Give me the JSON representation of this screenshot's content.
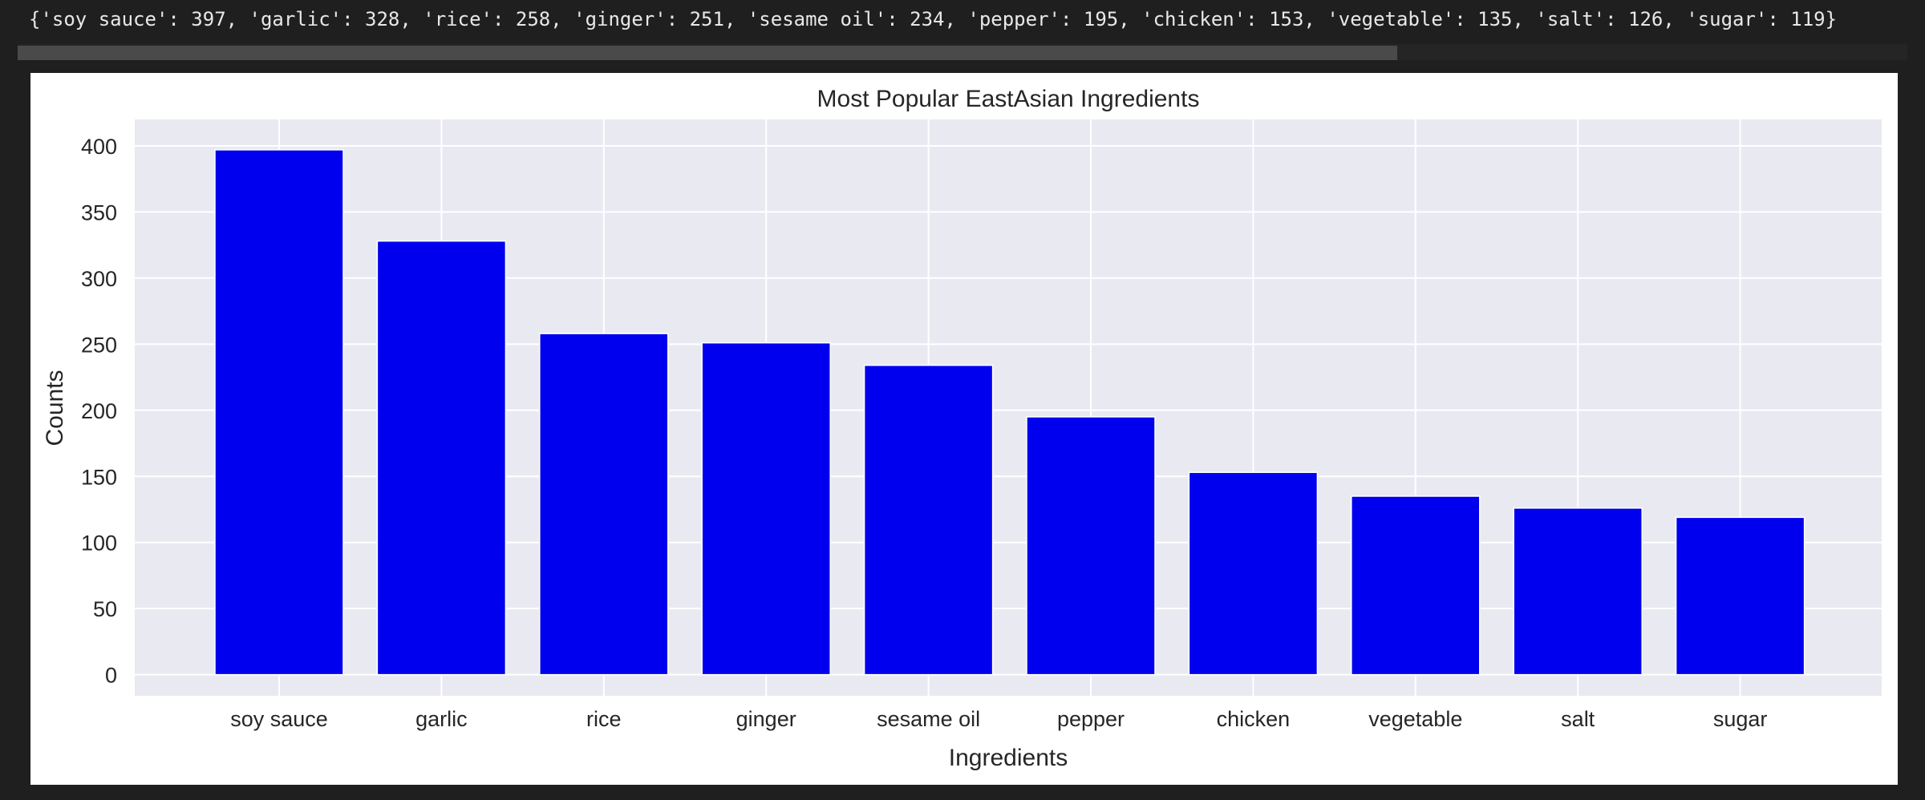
{
  "output": {
    "text": "{'soy sauce': 397, 'garlic': 328, 'rice': 258, 'ginger': 251, 'sesame oil': 234, 'pepper': 195, 'chicken': 153, 'vegetable': 135, 'salt': 126, 'sugar': 119}"
  },
  "chart_data": {
    "type": "bar",
    "title": "Most Popular EastAsian Ingredients",
    "xlabel": "Ingredients",
    "ylabel": "Counts",
    "categories": [
      "soy sauce",
      "garlic",
      "rice",
      "ginger",
      "sesame oil",
      "pepper",
      "chicken",
      "vegetable",
      "salt",
      "sugar"
    ],
    "values": [
      397,
      328,
      258,
      251,
      234,
      195,
      153,
      135,
      126,
      119
    ],
    "ylim": [
      0,
      400
    ],
    "yticks": [
      0,
      50,
      100,
      150,
      200,
      250,
      300,
      350,
      400
    ],
    "grid": true,
    "bar_color": "#0000ee",
    "plot_background": "#e9eaf1",
    "grid_color": "#ffffff"
  }
}
